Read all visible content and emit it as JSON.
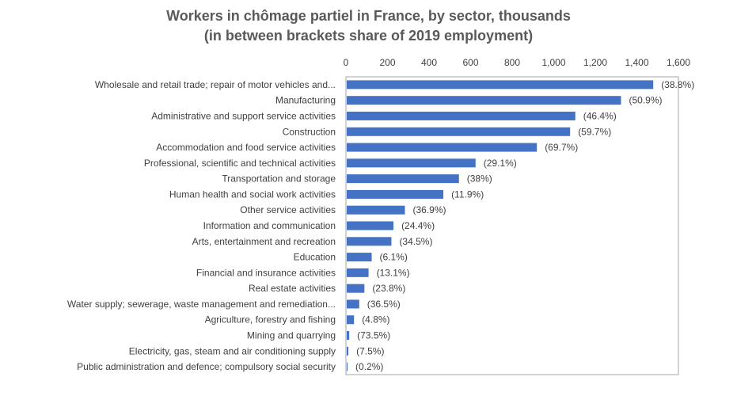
{
  "chart_data": {
    "type": "bar",
    "orientation": "horizontal",
    "title": "Workers in chômage partiel in France, by sector, thousands",
    "subtitle": "(in between brackets share of 2019 employment)",
    "xlabel": "",
    "ylabel": "",
    "xlim": [
      0,
      1600
    ],
    "x_ticks": [
      0,
      200,
      400,
      600,
      800,
      1000,
      1200,
      1400,
      1600
    ],
    "x_tick_labels": [
      "0",
      "200",
      "400",
      "600",
      "800",
      "1,000",
      "1,200",
      "1,400",
      "1,600"
    ],
    "x_axis_position": "top",
    "grid": false,
    "legend": "none",
    "bar_color": "#4472C4",
    "categories": [
      "Wholesale and retail trade; repair of motor vehicles and...",
      "Manufacturing",
      "Administrative and support service activities",
      "Construction",
      "Accommodation and food service activities",
      "Professional, scientific and technical activities",
      "Transportation and storage",
      "Human health and social work activities",
      "Other service activities",
      "Information and communication",
      "Arts, entertainment and recreation",
      "Education",
      "Financial and insurance activities",
      "Real estate activities",
      "Water supply; sewerage, waste management and remediation...",
      "Agriculture, forestry and fishing",
      "Mining and quarrying",
      "Electricity, gas, steam and air conditioning supply",
      "Public administration and defence; compulsory social security"
    ],
    "values": [
      1475,
      1320,
      1100,
      1075,
      915,
      620,
      540,
      465,
      280,
      225,
      215,
      120,
      105,
      85,
      60,
      35,
      12,
      8,
      4
    ],
    "data_labels": [
      "(38.8%)",
      "(50.9%)",
      "(46.4%)",
      "(59.7%)",
      "(69.7%)",
      "(29.1%)",
      "(38%)",
      "(11.9%)",
      "(36.9%)",
      "(24.4%)",
      "(34.5%)",
      "(6.1%)",
      "(13.1%)",
      "(23.8%)",
      "(36.5%)",
      "(4.8%)",
      "(73.5%)",
      "(7.5%)",
      "(0.2%)"
    ]
  }
}
